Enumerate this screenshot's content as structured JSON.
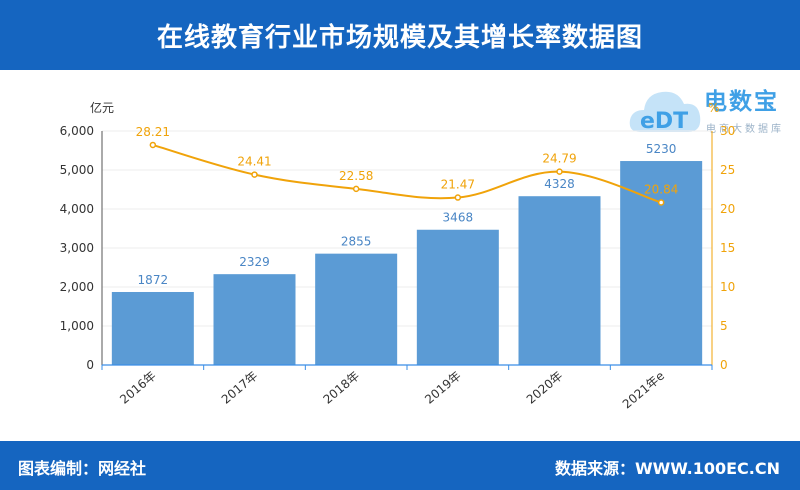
{
  "header": {
    "title": "在线教育行业市场规模及其增长率数据图"
  },
  "footer": {
    "left": "图表编制：网经社",
    "right": "数据来源：WWW.100EC.CN"
  },
  "watermark": {
    "brand": "电数宝",
    "sub": "电商大数据库",
    "logo": "cloud-logo-icon"
  },
  "chart_data": {
    "type": "bar",
    "categories": [
      "2016年",
      "2017年",
      "2018年",
      "2019年",
      "2020年",
      "2021年e"
    ],
    "series": [
      {
        "type": "bar",
        "axis": "left",
        "values": [
          1872,
          2329,
          2855,
          3468,
          4328,
          5230
        ]
      },
      {
        "type": "line",
        "axis": "right",
        "values": [
          28.21,
          24.41,
          22.58,
          21.47,
          24.79,
          20.84
        ]
      }
    ],
    "ylabel_left": "亿元",
    "ylabel_right": "%",
    "ylim_left": [
      0,
      6000
    ],
    "ylim_right": [
      0,
      30
    ],
    "yticks_left": [
      "0",
      "1,000",
      "2,000",
      "3,000",
      "4,000",
      "5,000",
      "6,000"
    ],
    "yticks_right": [
      "0",
      "5",
      "10",
      "15",
      "20",
      "25",
      "30"
    ],
    "grid": true,
    "colors": {
      "bar": "#5b9bd5",
      "line": "#f0a30a",
      "bar_label": "#4a86c5",
      "axis": "#333333"
    }
  }
}
